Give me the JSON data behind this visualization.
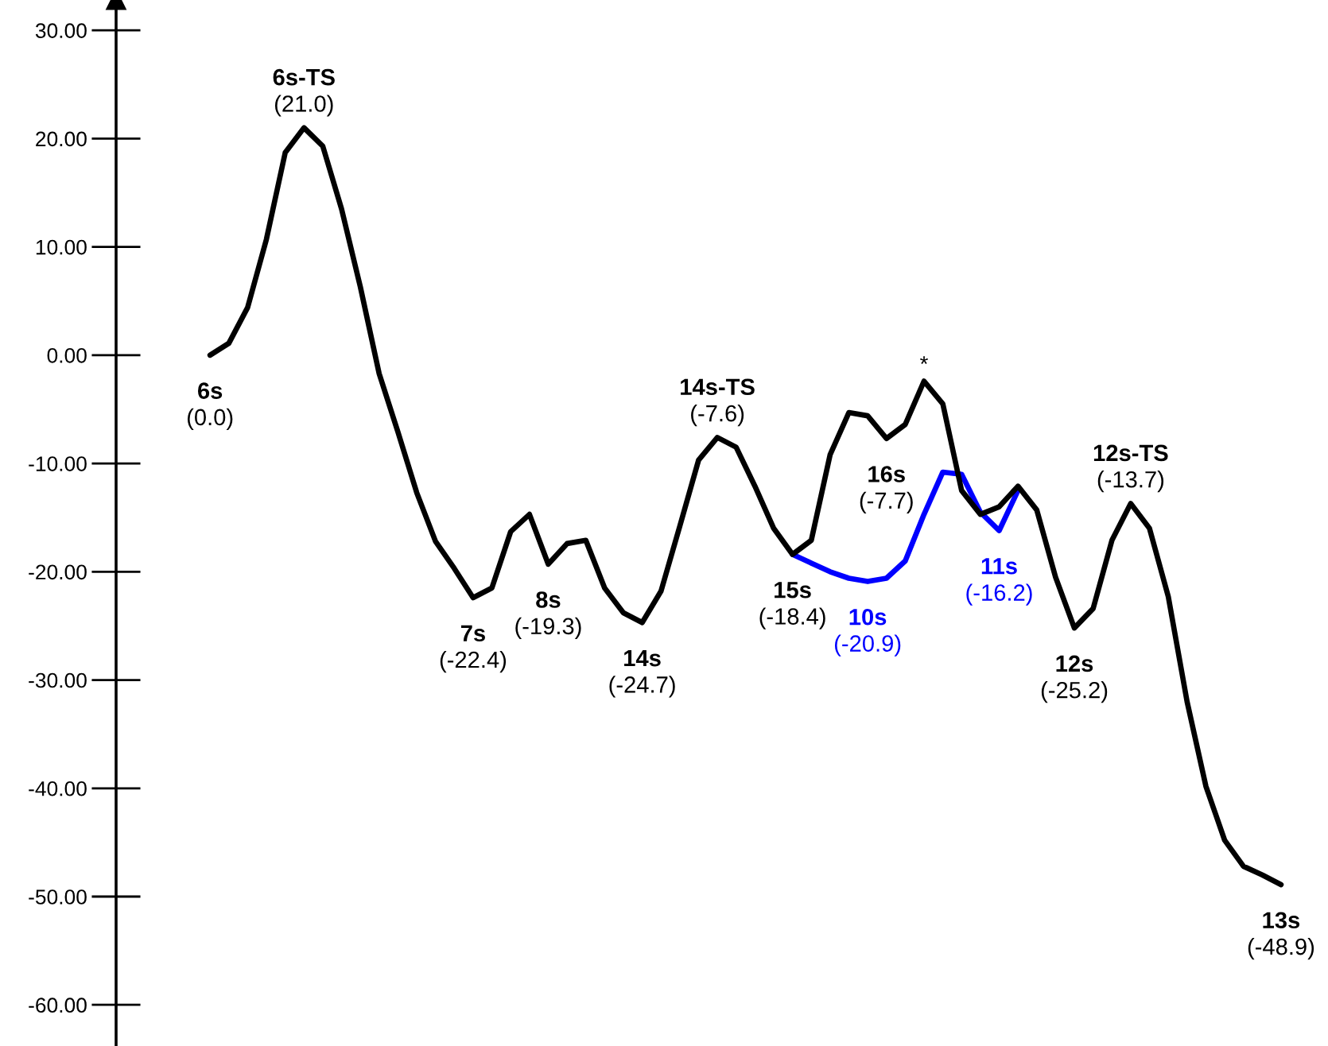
{
  "chart_data": {
    "type": "line",
    "categories": [
      null,
      null,
      null,
      null,
      null,
      null,
      null,
      null,
      null,
      null,
      null,
      null,
      null,
      null,
      null,
      null,
      null,
      null,
      null,
      null,
      null,
      null,
      null,
      null,
      null,
      null,
      null,
      null,
      null,
      null,
      null,
      null,
      null,
      null,
      null,
      null,
      null,
      null,
      null,
      null,
      null,
      null,
      null,
      null,
      null,
      null,
      null,
      null,
      null,
      null,
      null,
      null,
      null,
      null,
      null,
      null,
      null,
      null
    ],
    "ylim": [
      -63.8,
      32.8
    ],
    "yticks": [
      {
        "value": 30,
        "label": "30.00"
      },
      {
        "value": 20,
        "label": "20.00"
      },
      {
        "value": 10,
        "label": "10.00"
      },
      {
        "value": 0,
        "label": "0.00"
      },
      {
        "value": -10,
        "label": "-10.00"
      },
      {
        "value": -20,
        "label": "-20.00"
      },
      {
        "value": -30,
        "label": "-30.00"
      },
      {
        "value": -40,
        "label": "-40.00"
      },
      {
        "value": -50,
        "label": "-50.00"
      },
      {
        "value": -60,
        "label": "-60.00"
      }
    ],
    "tick_labels": "y",
    "marker": "none",
    "line_style": "solid",
    "series": [
      {
        "color": "#0000ff",
        "values": [
          null,
          null,
          null,
          null,
          null,
          null,
          null,
          null,
          null,
          null,
          null,
          null,
          null,
          null,
          null,
          null,
          null,
          null,
          null,
          null,
          null,
          null,
          null,
          null,
          null,
          null,
          null,
          null,
          null,
          null,
          null,
          -18.4,
          -19.2,
          -20.0,
          -20.6,
          -20.9,
          -20.6,
          -19.0,
          -14.7,
          -10.8,
          -11.0,
          -14.5,
          -16.2,
          -12.5,
          null,
          null,
          null,
          null,
          null,
          null,
          null,
          null,
          null,
          null,
          null,
          null,
          null,
          null
        ],
        "value_labels": [
          null,
          null,
          null,
          null,
          null,
          null,
          null,
          null,
          null,
          null,
          null,
          null,
          null,
          null,
          null,
          null,
          null,
          null,
          null,
          null,
          null,
          null,
          null,
          null,
          null,
          null,
          null,
          null,
          null,
          null,
          null,
          null,
          null,
          null,
          null,
          "10s\n(-20.9)",
          null,
          null,
          null,
          null,
          null,
          null,
          "11s\n(-16.2)",
          null,
          null,
          null,
          null,
          null,
          null,
          null,
          null,
          null,
          null,
          null,
          null,
          null,
          null,
          null
        ]
      },
      {
        "color": "#000000",
        "values": [
          0.0,
          1.1,
          4.4,
          10.7,
          18.7,
          21.0,
          19.3,
          13.5,
          6.3,
          -1.7,
          -7.1,
          -12.7,
          -17.2,
          -19.7,
          -22.4,
          -21.5,
          -16.3,
          -14.7,
          -19.3,
          -17.4,
          -17.1,
          -21.5,
          -23.8,
          -24.7,
          -21.8,
          -15.8,
          -9.7,
          -7.6,
          -8.5,
          -12.1,
          -16.0,
          -18.4,
          -17.1,
          -9.2,
          -5.3,
          -5.6,
          -7.7,
          -6.4,
          -2.4,
          -4.5,
          -12.5,
          -14.7,
          -14.0,
          -12.1,
          -14.3,
          -20.5,
          -25.2,
          -23.4,
          -17.1,
          -13.7,
          -16.0,
          -22.3,
          -32.0,
          -39.8,
          -44.8,
          -47.2,
          -48.0,
          -48.9
        ],
        "value_labels": [
          "6s\n(0.0)",
          null,
          null,
          null,
          null,
          "6s-TS\n(21.0)",
          null,
          null,
          null,
          null,
          null,
          null,
          null,
          null,
          "7s\n(-22.4)",
          null,
          null,
          null,
          "8s\n(-19.3)",
          null,
          null,
          null,
          null,
          "14s\n(-24.7)",
          null,
          null,
          null,
          "14s-TS\n(-7.6)",
          null,
          null,
          null,
          "15s\n(-18.4)",
          null,
          null,
          null,
          null,
          "16s\n(-7.7)",
          null,
          "*",
          null,
          null,
          null,
          null,
          null,
          null,
          null,
          "12s\n(-25.2)",
          null,
          null,
          "12s-TS\n(-13.7)",
          null,
          null,
          null,
          null,
          null,
          null,
          null,
          "13s\n(-48.9)"
        ]
      }
    ]
  }
}
